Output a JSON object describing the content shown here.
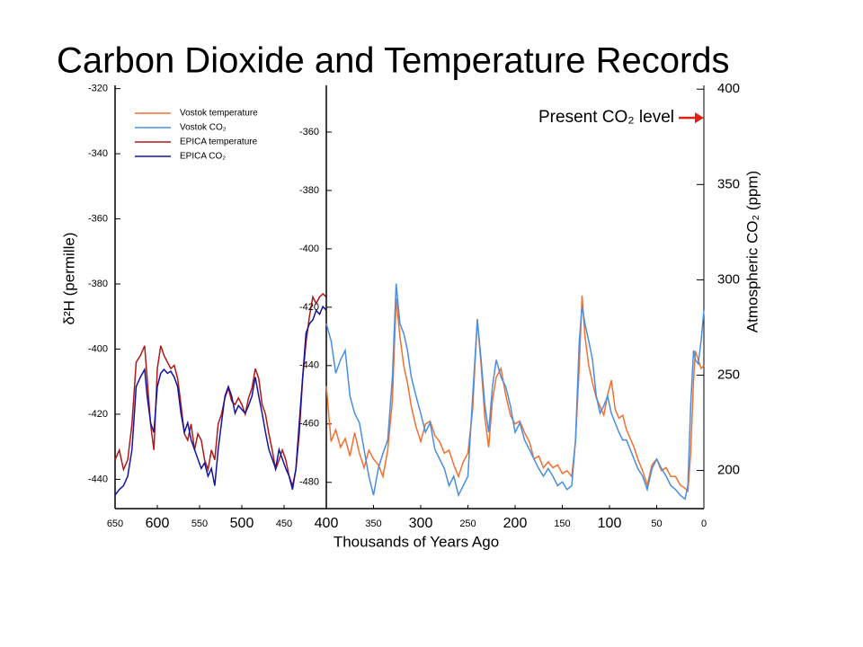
{
  "chart_data": [
    {
      "type": "line",
      "title": "Carbon Dioxide and Temperature Records",
      "y_label": "δ²H (permille)",
      "xlim": [
        650,
        400
      ],
      "xticks": [
        600,
        500
      ],
      "xticks_minor": [
        650,
        550,
        450
      ],
      "ylim": [
        -449,
        -319
      ],
      "yticks": [
        -320,
        -340,
        -360,
        -380,
        -400,
        -420,
        -440
      ],
      "y2lim": [
        180,
        402
      ],
      "legend": "upper left",
      "series": [
        {
          "name": "EPICA temperature",
          "color": "#b01818",
          "x": [
            650,
            645,
            640,
            635,
            630,
            625,
            620,
            615,
            612,
            608,
            604,
            600,
            596,
            592,
            588,
            584,
            580,
            576,
            572,
            568,
            564,
            560,
            556,
            552,
            548,
            544,
            540,
            536,
            532,
            528,
            524,
            520,
            516,
            512,
            508,
            504,
            500,
            496,
            492,
            488,
            484,
            480,
            476,
            472,
            468,
            464,
            460,
            456,
            452,
            448,
            444,
            440,
            436,
            432,
            428,
            424,
            420,
            416,
            412,
            408,
            404,
            400
          ],
          "values": [
            -434,
            -431,
            -437,
            -434,
            -423,
            -404,
            -402,
            -399,
            -409,
            -423,
            -431,
            -406,
            -399,
            -402,
            -404,
            -406,
            -405,
            -409,
            -417,
            -426,
            -428,
            -423,
            -431,
            -426,
            -428,
            -434,
            -437,
            -431,
            -434,
            -423,
            -420,
            -415,
            -412,
            -416,
            -417,
            -415,
            -417,
            -420,
            -415,
            -412,
            -406,
            -409,
            -417,
            -420,
            -426,
            -431,
            -437,
            -434,
            -431,
            -434,
            -439,
            -442,
            -437,
            -426,
            -409,
            -398,
            -390,
            -384,
            -386,
            -384,
            -383,
            -384
          ]
        },
        {
          "name": "EPICA CO₂",
          "color": "#1414a0",
          "axis": "y2",
          "x": [
            650,
            645,
            640,
            635,
            630,
            625,
            620,
            615,
            612,
            608,
            604,
            600,
            596,
            592,
            588,
            584,
            580,
            576,
            572,
            568,
            564,
            560,
            556,
            552,
            548,
            544,
            540,
            536,
            532,
            528,
            524,
            520,
            516,
            512,
            508,
            504,
            500,
            496,
            492,
            488,
            484,
            480,
            476,
            472,
            468,
            464,
            460,
            456,
            452,
            448,
            444,
            440,
            436,
            432,
            428,
            424,
            420,
            416,
            412,
            408,
            404,
            400
          ],
          "values": [
            187,
            190,
            192,
            197,
            211,
            244,
            249,
            253,
            239,
            225,
            220,
            244,
            251,
            253,
            251,
            252,
            249,
            244,
            230,
            220,
            225,
            216,
            211,
            206,
            201,
            204,
            197,
            201,
            192,
            211,
            225,
            239,
            244,
            239,
            230,
            234,
            232,
            230,
            234,
            239,
            249,
            239,
            230,
            220,
            211,
            206,
            201,
            211,
            206,
            201,
            197,
            190,
            201,
            225,
            249,
            272,
            277,
            279,
            284,
            282,
            286,
            284
          ]
        }
      ]
    },
    {
      "type": "line",
      "x_label": "Thousands of Years Ago",
      "y2_label": "Atmospheric CO₂ (ppm)",
      "xlim": [
        400,
        0
      ],
      "xticks": [
        400,
        300,
        200,
        100
      ],
      "xticks_minor": [
        350,
        250,
        150,
        50,
        0
      ],
      "ylim": [
        -489,
        -344
      ],
      "yticks": [
        -360,
        -380,
        -400,
        -420,
        -440,
        -460,
        -480
      ],
      "y2lim": [
        180,
        402
      ],
      "y2ticks": [
        200,
        250,
        300,
        350,
        400
      ],
      "annotations": [
        {
          "text": "Present CO₂ level",
          "y": 385,
          "color": "#e02010"
        }
      ],
      "series": [
        {
          "name": "Vostok temperature",
          "color": "#f07030",
          "x": [
            400,
            395,
            390,
            385,
            380,
            375,
            370,
            365,
            360,
            355,
            350,
            345,
            340,
            335,
            330,
            326,
            322,
            318,
            314,
            310,
            305,
            300,
            295,
            290,
            285,
            280,
            275,
            270,
            265,
            260,
            255,
            250,
            245,
            240,
            236,
            232,
            228,
            224,
            220,
            215,
            210,
            205,
            200,
            195,
            190,
            185,
            180,
            175,
            170,
            165,
            160,
            155,
            150,
            145,
            140,
            136,
            132,
            129,
            126,
            122,
            118,
            114,
            110,
            106,
            102,
            98,
            94,
            90,
            86,
            82,
            78,
            74,
            70,
            65,
            60,
            55,
            50,
            45,
            40,
            35,
            30,
            25,
            20,
            17,
            14,
            11,
            9,
            6,
            3,
            0
          ],
          "values": [
            -447,
            -466,
            -462,
            -468,
            -465,
            -471,
            -463,
            -470,
            -475,
            -469,
            -472,
            -474,
            -478,
            -469,
            -452,
            -417,
            -430,
            -440,
            -446,
            -454,
            -461,
            -466,
            -460,
            -459,
            -464,
            -466,
            -470,
            -469,
            -474,
            -478,
            -473,
            -470,
            -455,
            -424,
            -440,
            -458,
            -468,
            -452,
            -444,
            -441,
            -450,
            -457,
            -460,
            -459,
            -463,
            -466,
            -472,
            -471,
            -475,
            -473,
            -475,
            -474,
            -477,
            -476,
            -478,
            -466,
            -440,
            -416,
            -430,
            -440,
            -446,
            -451,
            -454,
            -457,
            -450,
            -445,
            -455,
            -458,
            -457,
            -462,
            -465,
            -468,
            -472,
            -476,
            -481,
            -474,
            -472,
            -476,
            -475,
            -478,
            -478,
            -481,
            -482,
            -483,
            -470,
            -445,
            -435,
            -438,
            -441,
            -440
          ]
        },
        {
          "name": "Vostok CO₂",
          "color": "#4a8ee0",
          "axis": "y2",
          "x": [
            400,
            395,
            390,
            385,
            380,
            375,
            370,
            365,
            360,
            355,
            350,
            345,
            340,
            335,
            330,
            326,
            322,
            318,
            314,
            310,
            305,
            300,
            295,
            290,
            285,
            280,
            275,
            270,
            265,
            260,
            255,
            250,
            245,
            240,
            236,
            232,
            228,
            224,
            220,
            215,
            210,
            205,
            200,
            195,
            190,
            185,
            180,
            175,
            170,
            165,
            160,
            155,
            150,
            145,
            140,
            136,
            132,
            129,
            126,
            122,
            118,
            114,
            110,
            106,
            102,
            98,
            94,
            90,
            86,
            82,
            78,
            74,
            70,
            65,
            60,
            55,
            50,
            45,
            40,
            35,
            30,
            25,
            20,
            17,
            14,
            11,
            9,
            6,
            3,
            0
          ],
          "values": [
            277,
            268,
            251,
            258,
            263,
            239,
            230,
            225,
            211,
            197,
            187,
            201,
            209,
            216,
            249,
            298,
            277,
            272,
            263,
            249,
            239,
            230,
            220,
            225,
            211,
            206,
            201,
            192,
            197,
            187,
            192,
            197,
            239,
            279,
            258,
            234,
            220,
            244,
            258,
            249,
            244,
            234,
            220,
            225,
            216,
            211,
            206,
            201,
            197,
            201,
            197,
            192,
            194,
            190,
            192,
            216,
            268,
            286,
            277,
            268,
            258,
            239,
            230,
            234,
            239,
            230,
            225,
            220,
            216,
            216,
            211,
            206,
            201,
            197,
            190,
            201,
            206,
            201,
            197,
            192,
            190,
            187,
            185,
            192,
            234,
            263,
            258,
            256,
            268,
            284
          ]
        }
      ]
    }
  ]
}
